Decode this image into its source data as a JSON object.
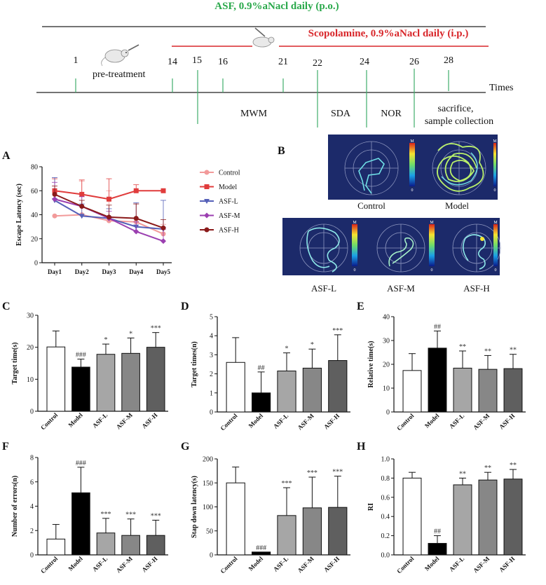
{
  "timeline": {
    "top_title": "ASF, 0.9%aNacl daily (p.o.)",
    "scop_title": "Scopolamine, 0.9%aNacl  daily (i.p.)",
    "pretreatment_label": "pre-treatment",
    "axis_label": "Times",
    "days": [
      "1",
      "14",
      "15",
      "16",
      "21",
      "22",
      "24",
      "26",
      "28"
    ],
    "phases": [
      "MWM",
      "SDA",
      "NOR",
      "sacrifice,",
      "sample collection"
    ],
    "colors": {
      "green": "#29a84a",
      "red": "#d8262a"
    }
  },
  "panel_labels": [
    "A",
    "B",
    "C",
    "D",
    "E",
    "F",
    "G",
    "H"
  ],
  "heatmaps": {
    "captions": [
      "Control",
      "Model",
      "ASF-L",
      "ASF-M",
      "ASF-H"
    ],
    "scale_top": "M",
    "scale_bottom": "0"
  },
  "chart_data": [
    {
      "id": "A",
      "type": "line",
      "ylabel": "Escape Latency (sec)",
      "categories": [
        "Day1",
        "Day2",
        "Day3",
        "Day4",
        "Day5"
      ],
      "ylim": [
        0,
        80
      ],
      "yticks": [
        "0",
        "20",
        "40",
        "60",
        "80"
      ],
      "series": [
        {
          "name": "Control",
          "color": "#f29a9a",
          "marker": "circle",
          "values": [
            39,
            40,
            35,
            34,
            24
          ],
          "err": [
            0,
            28,
            25,
            15,
            8
          ]
        },
        {
          "name": "Model",
          "color": "#e03c3c",
          "marker": "square",
          "values": [
            60,
            57,
            53,
            60,
            60
          ],
          "err": [
            10,
            12,
            17,
            5,
            0
          ]
        },
        {
          "name": "ASF-L",
          "color": "#5560b8",
          "marker": "triangle",
          "values": [
            52,
            39,
            37,
            30,
            28
          ],
          "err": [
            19,
            10,
            8,
            20,
            24
          ]
        },
        {
          "name": "ASF-M",
          "color": "#9b3fb0",
          "marker": "diamond",
          "values": [
            53,
            47,
            37,
            26,
            18
          ],
          "err": [
            14,
            8,
            6,
            8,
            10
          ]
        },
        {
          "name": "ASF-H",
          "color": "#8b1a1a",
          "marker": "circle",
          "values": [
            57,
            47,
            38,
            37,
            29
          ],
          "err": [
            7,
            5,
            10,
            12,
            7
          ]
        }
      ]
    },
    {
      "id": "C",
      "type": "bar",
      "ylabel": "Target time(s)",
      "categories": [
        "Control",
        "Model",
        "ASF-L",
        "ASF-M",
        "ASF-H"
      ],
      "values": [
        20.1,
        13.8,
        17.8,
        18.1,
        20.0
      ],
      "err": [
        5.0,
        2.5,
        3.2,
        4.8,
        4.6
      ],
      "sig": [
        "",
        "###",
        "*",
        "*",
        "***"
      ],
      "ylim": [
        0,
        30
      ],
      "yticks": [
        "0",
        "10",
        "20",
        "30"
      ]
    },
    {
      "id": "D",
      "type": "bar",
      "ylabel": "Target times(n)",
      "categories": [
        "Control",
        "Model",
        "ASF-L",
        "ASF-M",
        "ASF-H"
      ],
      "values": [
        2.6,
        1.0,
        2.15,
        2.3,
        2.7
      ],
      "err": [
        1.3,
        1.1,
        0.95,
        1.0,
        1.35
      ],
      "sig": [
        "",
        "##",
        "*",
        "*",
        "***"
      ],
      "ylim": [
        0,
        5
      ],
      "yticks": [
        "0",
        "1",
        "2",
        "3",
        "4",
        "5"
      ]
    },
    {
      "id": "E",
      "type": "bar",
      "ylabel": "Relative time(s)",
      "categories": [
        "Control",
        "Model",
        "ASF-L",
        "ASF-M",
        "ASF-H"
      ],
      "values": [
        17.4,
        26.8,
        18.4,
        17.9,
        18.2
      ],
      "err": [
        7.1,
        7.2,
        7.2,
        5.8,
        6.0
      ],
      "sig": [
        "",
        "##",
        "**",
        "**",
        "**"
      ],
      "ylim": [
        0,
        40
      ],
      "yticks": [
        "0",
        "10",
        "20",
        "30",
        "40"
      ]
    },
    {
      "id": "F",
      "type": "bar",
      "ylabel": "Number of errors(n)",
      "categories": [
        "Control",
        "Model",
        "ASF-L",
        "ASF-M",
        "ASF-H"
      ],
      "values": [
        1.3,
        5.1,
        1.8,
        1.6,
        1.6
      ],
      "err": [
        1.2,
        2.1,
        1.2,
        1.35,
        1.25
      ],
      "sig": [
        "",
        "###",
        "***",
        "***",
        "***"
      ],
      "ylim": [
        0,
        8
      ],
      "yticks": [
        "0",
        "2",
        "4",
        "6",
        "8"
      ]
    },
    {
      "id": "G",
      "type": "bar",
      "ylabel": "Stap down latency(s)",
      "categories": [
        "Control",
        "Model",
        "ASF-L",
        "ASF-M",
        "ASF-H"
      ],
      "values": [
        150,
        6,
        82,
        98,
        99
      ],
      "err": [
        33,
        0,
        58,
        64,
        65
      ],
      "sig": [
        "",
        "###",
        "***",
        "***",
        "***"
      ],
      "ylim": [
        0,
        200
      ],
      "yticks": [
        "0",
        "50",
        "100",
        "150",
        "200"
      ]
    },
    {
      "id": "H",
      "type": "bar",
      "ylabel": "RI",
      "categories": [
        "Control",
        "Model",
        "ASF-L",
        "ASF-M",
        "ASF-H"
      ],
      "values": [
        0.8,
        0.12,
        0.73,
        0.78,
        0.79
      ],
      "err": [
        0.06,
        0.08,
        0.07,
        0.08,
        0.1
      ],
      "sig": [
        "",
        "##",
        "**",
        "**",
        "**"
      ],
      "ylim": [
        0,
        1.0
      ],
      "yticks": [
        "0.0",
        "0.2",
        "0.4",
        "0.6",
        "0.8",
        "1.0"
      ]
    }
  ]
}
